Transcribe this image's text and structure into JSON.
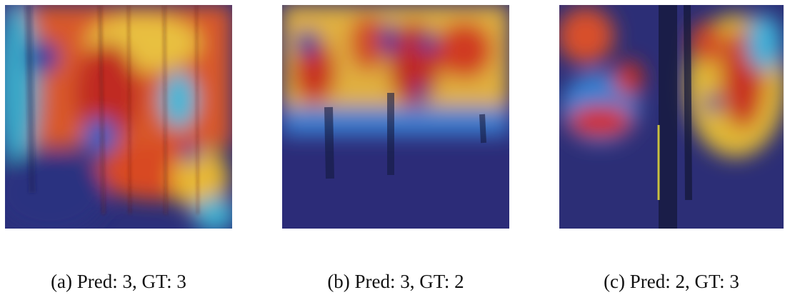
{
  "panels": [
    {
      "caption": "(a) Pred: 3, GT: 3"
    },
    {
      "caption": "(b) Pred: 3, GT: 2"
    },
    {
      "caption": "(c) Pred: 2, GT: 3"
    }
  ]
}
